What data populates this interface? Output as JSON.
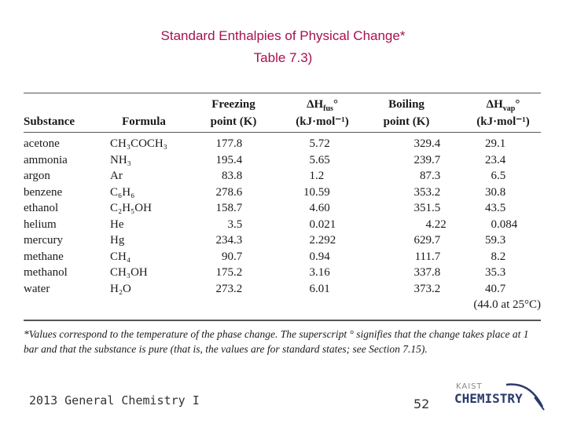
{
  "header": {
    "title": "Standard Enthalpies of Physical Change*",
    "subtitle": "Table 7.3)"
  },
  "table": {
    "columns": [
      {
        "line2": "Substance"
      },
      {
        "line2": "Formula"
      },
      {
        "line1": "Freezing",
        "line2": "point (K)"
      },
      {
        "line1": "ΔH",
        "sub": "fus",
        "sup": "°",
        "line2": "(kJ·mol⁻¹)"
      },
      {
        "line1": "Boiling",
        "line2": "point (K)"
      },
      {
        "line1": "ΔH",
        "sub": "vap",
        "sup": "°",
        "line2": "(kJ·mol⁻¹)"
      }
    ],
    "rows": [
      [
        "acetone",
        "CH₃COCH₃",
        "177.8",
        "5.72",
        "329.4",
        "29.1"
      ],
      [
        "ammonia",
        "NH₃",
        "195.4",
        "5.65",
        "239.7",
        "23.4"
      ],
      [
        "argon",
        "Ar",
        "83.8",
        "1.2",
        "87.3",
        "6.5"
      ],
      [
        "benzene",
        "C₆H₆",
        "278.6",
        "10.59",
        "353.2",
        "30.8"
      ],
      [
        "ethanol",
        "C₂H₅OH",
        "158.7",
        "4.60",
        "351.5",
        "43.5"
      ],
      [
        "helium",
        "He",
        "3.5",
        "0.021",
        "4.22",
        "0.084"
      ],
      [
        "mercury",
        "Hg",
        "234.3",
        "2.292",
        "629.7",
        "59.3"
      ],
      [
        "methane",
        "CH₄",
        "90.7",
        "0.94",
        "111.7",
        "8.2"
      ],
      [
        "methanol",
        "CH₃OH",
        "175.2",
        "3.16",
        "337.8",
        "35.3"
      ],
      [
        "water",
        "H₂O",
        "273.2",
        "6.01",
        "373.2",
        "40.7"
      ]
    ],
    "water_note": "(44.0 at 25°C)",
    "footnote": "*Values correspond to the temperature of the phase change. The superscript ° signifies that the change takes place at 1 bar and that the substance is pure (that is, the values are for standard states; see Section 7.15)."
  },
  "footer": {
    "course": "2013 General Chemistry I",
    "page": "52",
    "logo_top": "KAIST",
    "logo_main": "CHEMISTRY"
  }
}
